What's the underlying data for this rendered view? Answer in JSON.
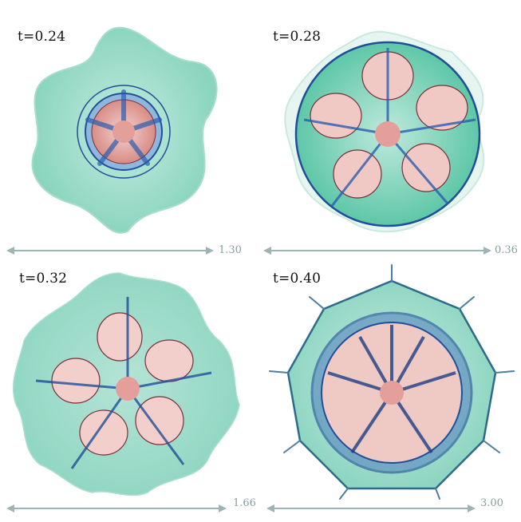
{
  "panels": [
    {
      "time_label": "t=0.24",
      "scale_label": "1.30"
    },
    {
      "time_label": "t=0.28",
      "scale_label": "0.36"
    },
    {
      "time_label": "t=0.32",
      "scale_label": "1.66"
    },
    {
      "time_label": "t=0.40",
      "scale_label": "3.00"
    }
  ],
  "colors": {
    "outer_green": "#7fd1b9",
    "inner_pink": "#e7a8a3",
    "dark_blue": "#1f4f9a",
    "arrow_gray": "#9fb3b6"
  }
}
